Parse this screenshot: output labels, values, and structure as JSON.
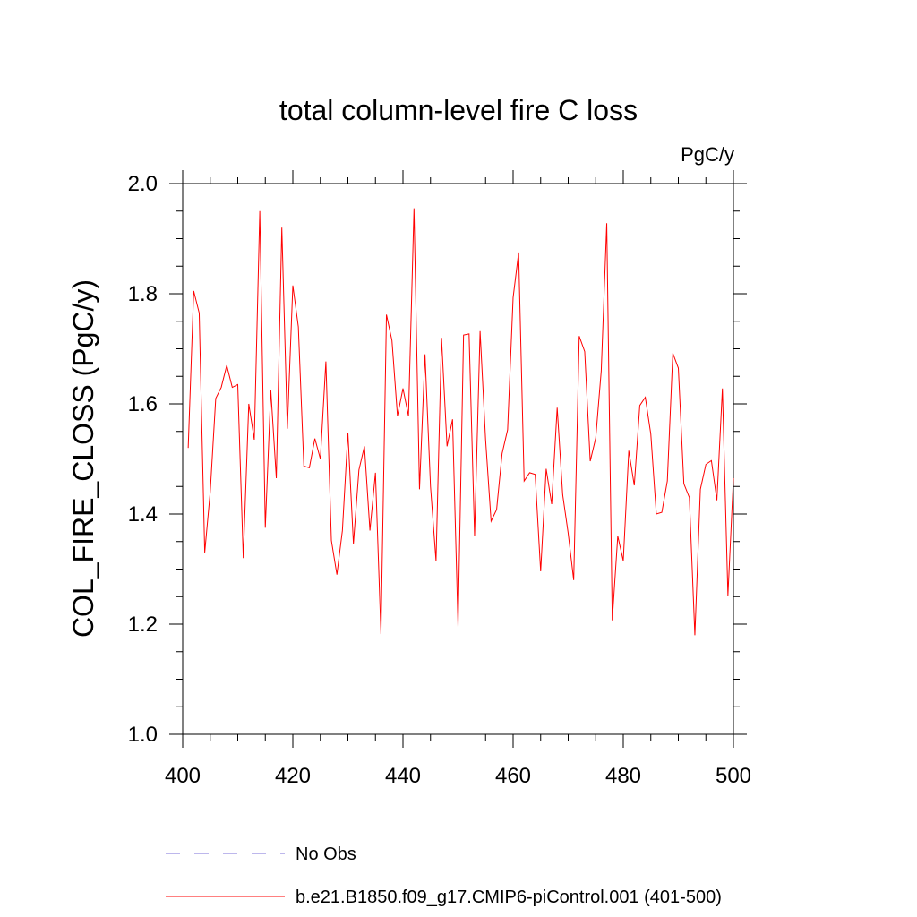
{
  "chart_data": {
    "type": "line",
    "title": "total column-level fire C loss",
    "units": "PgC/y",
    "xlabel": "",
    "ylabel": "COL_FIRE_CLOSS  (PgC/y)",
    "xlim": [
      400,
      500
    ],
    "ylim": [
      1.0,
      2.0
    ],
    "x_ticks": [
      400,
      420,
      440,
      460,
      480,
      500
    ],
    "x_tick_labels": [
      "400",
      "420",
      "440",
      "460",
      "480",
      "500"
    ],
    "y_ticks": [
      1.0,
      1.2,
      1.4,
      1.6,
      1.8,
      2.0
    ],
    "y_tick_labels": [
      "1.0",
      "1.2",
      "1.4",
      "1.6",
      "1.8",
      "2.0"
    ],
    "series": [
      {
        "name": "b.e21.B1850.f09_g17.CMIP6-piControl.001 (401-500)",
        "color": "#ff0000",
        "style": "solid",
        "x_start": 401,
        "x_step": 1,
        "values": [
          1.52,
          1.805,
          1.765,
          1.33,
          1.44,
          1.61,
          1.63,
          1.67,
          1.63,
          1.635,
          1.32,
          1.6,
          1.535,
          1.95,
          1.375,
          1.625,
          1.465,
          1.92,
          1.555,
          1.815,
          1.74,
          1.487,
          1.484,
          1.537,
          1.5,
          1.677,
          1.352,
          1.29,
          1.37,
          1.548,
          1.346,
          1.48,
          1.523,
          1.37,
          1.475,
          1.182,
          1.762,
          1.715,
          1.578,
          1.628,
          1.578,
          1.955,
          1.445,
          1.69,
          1.45,
          1.315,
          1.72,
          1.523,
          1.572,
          1.195,
          1.725,
          1.727,
          1.36,
          1.732,
          1.535,
          1.387,
          1.408,
          1.51,
          1.553,
          1.793,
          1.875,
          1.46,
          1.475,
          1.472,
          1.296,
          1.482,
          1.418,
          1.593,
          1.435,
          1.365,
          1.28,
          1.723,
          1.695,
          1.496,
          1.538,
          1.66,
          1.928,
          1.207,
          1.36,
          1.315,
          1.515,
          1.452,
          1.597,
          1.612,
          1.545,
          1.4,
          1.403,
          1.46,
          1.692,
          1.665,
          1.455,
          1.43,
          1.18,
          1.445,
          1.49,
          1.497,
          1.425,
          1.628,
          1.252,
          1.465
        ]
      },
      {
        "name": "No Obs",
        "color": "#7b6fd9",
        "style": "dashed",
        "values": []
      }
    ],
    "legend": {
      "placement": "bottom-left",
      "entries": [
        "No Obs",
        "b.e21.B1850.f09_g17.CMIP6-piControl.001 (401-500)"
      ]
    }
  }
}
